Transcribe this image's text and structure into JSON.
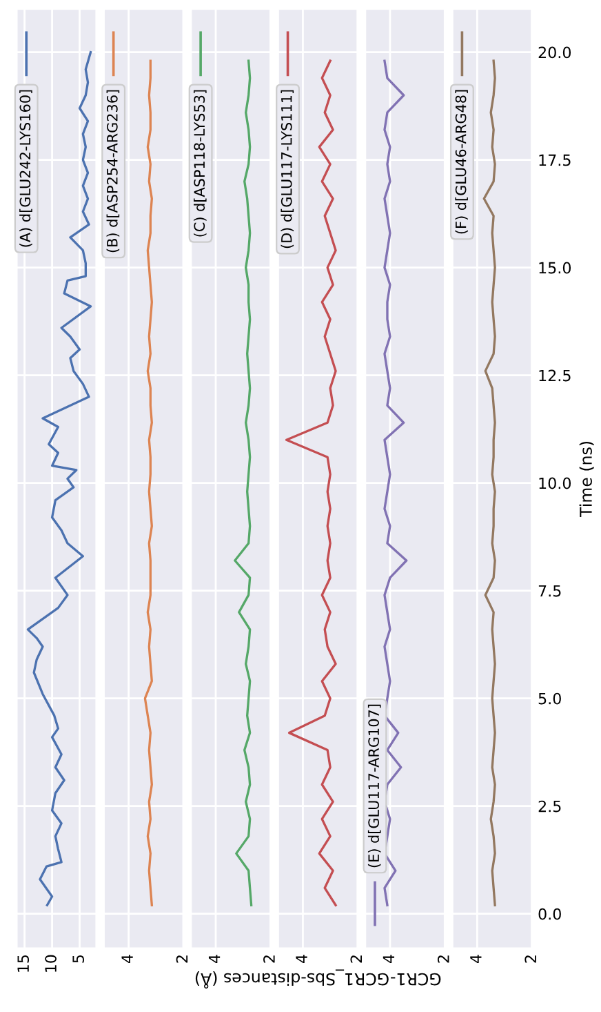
{
  "chart_data": [
    {
      "type": "line",
      "ylim": [
        -0.8,
        21.0
      ],
      "yticks": [
        0,
        2.5,
        5,
        7.5,
        10,
        12.5,
        15,
        17.5,
        20
      ],
      "xlim": [
        16.4,
        2.0
      ],
      "xticks": [
        15,
        10,
        5
      ],
      "grid": true,
      "legend": "top left",
      "tick_labels": "x",
      "series": [
        {
          "name": "(A) d[GLU242-LYS160]",
          "color": "#4c72b0",
          "values": [
            0.2,
            0.4,
            0.8,
            1.1,
            1.2,
            1.5,
            1.8,
            2.1,
            2.4,
            2.8,
            3.1,
            3.4,
            3.7,
            4.1,
            4.3,
            4.6,
            5.1,
            5.6,
            5.9,
            6.2,
            6.4,
            6.6,
            7.1,
            7.4,
            7.8,
            8.3,
            8.6,
            8.9,
            9.2,
            9.6,
            9.9,
            10.1,
            10.3,
            10.4,
            10.7,
            10.9,
            11.3,
            11.5,
            12.0,
            12.3,
            12.6,
            12.9,
            13.1,
            13.4,
            13.6,
            14.1,
            14.4,
            14.7,
            14.8,
            15.1,
            15.4,
            15.7,
            16.0,
            16.3,
            16.6,
            16.9,
            17.2,
            17.5,
            17.8,
            18.1,
            18.4,
            18.7,
            19.0,
            19.3,
            19.6,
            20.0
          ],
          "x": [
            10.9,
            10.0,
            12.2,
            11.0,
            8.3,
            8.9,
            9.4,
            8.3,
            10.0,
            9.4,
            7.8,
            9.4,
            8.3,
            10.0,
            8.9,
            9.6,
            11.7,
            13.3,
            12.8,
            11.7,
            12.8,
            14.4,
            8.9,
            7.2,
            9.4,
            4.4,
            7.2,
            8.3,
            10.0,
            9.4,
            6.1,
            7.2,
            5.6,
            10.0,
            8.9,
            10.6,
            8.9,
            11.7,
            3.3,
            4.4,
            6.1,
            6.7,
            5.0,
            6.7,
            8.3,
            3.0,
            7.8,
            7.2,
            3.9,
            3.9,
            4.4,
            6.7,
            3.3,
            4.4,
            3.5,
            4.4,
            3.5,
            4.4,
            3.9,
            4.4,
            3.5,
            5.0,
            3.9,
            3.5,
            3.9,
            3.0
          ]
        }
      ]
    },
    {
      "type": "line",
      "ylim": [
        -0.8,
        21.0
      ],
      "yticks": [
        0,
        2.5,
        5,
        7.5,
        10,
        12.5,
        15,
        17.5,
        20
      ],
      "xlim": [
        4.9,
        2.0
      ],
      "xticks": [
        4,
        2
      ],
      "grid": true,
      "legend": "top left",
      "tick_labels": "x",
      "series": [
        {
          "name": "(B) d[ASP254-ARG236]",
          "color": "#dd8452",
          "values": [
            0.2,
            0.6,
            1.0,
            1.4,
            1.8,
            2.2,
            2.6,
            3.0,
            3.4,
            3.8,
            4.2,
            4.6,
            5.0,
            5.4,
            5.8,
            6.2,
            6.6,
            7.0,
            7.4,
            7.8,
            8.2,
            8.6,
            9.0,
            9.4,
            9.8,
            10.2,
            10.6,
            11.0,
            11.4,
            11.8,
            12.2,
            12.6,
            13.0,
            13.4,
            13.8,
            14.2,
            14.6,
            15.0,
            15.4,
            15.8,
            16.2,
            16.6,
            17.0,
            17.4,
            17.8,
            18.2,
            18.6,
            19.0,
            19.4,
            19.8
          ],
          "x": [
            3.15,
            3.2,
            3.25,
            3.2,
            3.3,
            3.2,
            3.25,
            3.15,
            3.2,
            3.25,
            3.2,
            3.3,
            3.4,
            3.15,
            3.2,
            3.25,
            3.2,
            3.3,
            3.2,
            3.2,
            3.2,
            3.25,
            3.15,
            3.2,
            3.25,
            3.2,
            3.2,
            3.25,
            3.15,
            3.2,
            3.2,
            3.3,
            3.2,
            3.25,
            3.2,
            3.15,
            3.2,
            3.25,
            3.3,
            3.2,
            3.2,
            3.15,
            3.25,
            3.2,
            3.3,
            3.2,
            3.2,
            3.25,
            3.2,
            3.2
          ]
        }
      ]
    },
    {
      "type": "line",
      "ylim": [
        -0.8,
        21.0
      ],
      "yticks": [
        0,
        2.5,
        5,
        7.5,
        10,
        12.5,
        15,
        17.5,
        20
      ],
      "xlim": [
        4.9,
        2.0
      ],
      "xticks": [
        4,
        2
      ],
      "grid": true,
      "legend": "top left",
      "tick_labels": "x",
      "series": [
        {
          "name": "(C) d[ASP118-LYS53]",
          "color": "#55a868",
          "values": [
            0.2,
            0.6,
            1.0,
            1.4,
            1.8,
            2.2,
            2.6,
            3.0,
            3.4,
            3.8,
            4.2,
            4.6,
            5.0,
            5.4,
            5.8,
            6.2,
            6.6,
            7.0,
            7.4,
            7.8,
            8.2,
            8.6,
            9.0,
            9.4,
            9.8,
            10.2,
            10.6,
            11.0,
            11.4,
            11.8,
            12.2,
            12.6,
            13.0,
            13.4,
            13.8,
            14.2,
            14.6,
            15.0,
            15.4,
            15.8,
            16.2,
            16.6,
            17.0,
            17.4,
            17.8,
            18.2,
            18.6,
            19.0,
            19.4,
            19.8
          ],
          "x": [
            2.7,
            2.75,
            2.8,
            3.25,
            2.8,
            2.75,
            2.9,
            2.75,
            2.8,
            2.95,
            2.75,
            2.85,
            2.8,
            2.75,
            2.9,
            2.8,
            2.75,
            3.15,
            2.8,
            2.75,
            3.3,
            2.8,
            2.75,
            2.8,
            2.85,
            2.8,
            2.75,
            2.8,
            2.9,
            2.8,
            2.75,
            2.8,
            2.85,
            2.8,
            2.75,
            2.8,
            2.8,
            2.9,
            2.8,
            2.75,
            2.8,
            2.85,
            2.95,
            2.8,
            2.75,
            2.8,
            2.9,
            2.8,
            2.75,
            2.8
          ]
        }
      ]
    },
    {
      "type": "line",
      "ylim": [
        -0.8,
        21.0
      ],
      "yticks": [
        0,
        2.5,
        5,
        7.5,
        10,
        12.5,
        15,
        17.5,
        20
      ],
      "xlim": [
        4.9,
        2.0
      ],
      "xticks": [
        4,
        2
      ],
      "grid": true,
      "legend": "top left",
      "tick_labels": "x",
      "xlabel": "GCR1-GCR1_Sbs-distances (Å)",
      "series": [
        {
          "name": "(D) d[GLU117-LYS111]",
          "color": "#c44e52",
          "values": [
            0.2,
            0.6,
            1.0,
            1.4,
            1.8,
            2.2,
            2.6,
            3.0,
            3.4,
            3.8,
            4.2,
            4.6,
            5.0,
            5.4,
            5.8,
            6.2,
            6.6,
            7.0,
            7.4,
            7.8,
            8.2,
            8.6,
            9.0,
            9.4,
            9.8,
            10.2,
            10.6,
            11.0,
            11.4,
            11.8,
            12.2,
            12.6,
            13.0,
            13.4,
            13.8,
            14.2,
            14.6,
            15.0,
            15.4,
            15.8,
            16.2,
            16.6,
            17.0,
            17.4,
            17.8,
            18.2,
            18.6,
            19.0,
            19.4,
            19.8
          ],
          "x": [
            2.8,
            3.2,
            2.9,
            3.4,
            3.0,
            3.3,
            2.9,
            3.3,
            3.0,
            3.1,
            4.5,
            3.2,
            3.0,
            3.3,
            2.8,
            3.1,
            3.2,
            3.0,
            3.3,
            3.0,
            3.1,
            3.0,
            3.1,
            3.0,
            3.1,
            3.0,
            3.1,
            4.6,
            3.1,
            2.9,
            3.0,
            2.8,
            3.0,
            3.2,
            3.0,
            3.3,
            2.9,
            3.1,
            2.8,
            3.0,
            3.2,
            2.9,
            3.3,
            3.0,
            3.4,
            2.9,
            3.2,
            3.0,
            3.3,
            3.0
          ]
        }
      ]
    },
    {
      "type": "line",
      "ylim": [
        -0.8,
        21.0
      ],
      "yticks": [
        0,
        2.5,
        5,
        7.5,
        10,
        12.5,
        15,
        17.5,
        20
      ],
      "xlim": [
        4.9,
        2.0
      ],
      "xticks": [
        4,
        2
      ],
      "grid": true,
      "legend": "bottom left",
      "tick_labels": "x",
      "series": [
        {
          "name": "(E) d[GLU117-ARG107]",
          "color": "#8172b3",
          "values": [
            0.2,
            0.6,
            1.0,
            1.4,
            1.8,
            2.2,
            2.6,
            3.0,
            3.4,
            3.8,
            4.2,
            4.6,
            5.0,
            5.4,
            5.8,
            6.2,
            6.6,
            7.0,
            7.4,
            7.8,
            8.2,
            8.6,
            9.0,
            9.4,
            9.8,
            10.2,
            10.6,
            11.0,
            11.4,
            11.8,
            12.2,
            12.6,
            13.0,
            13.4,
            13.8,
            14.2,
            14.6,
            15.0,
            15.4,
            15.8,
            16.2,
            16.6,
            17.0,
            17.4,
            17.8,
            18.2,
            18.6,
            19.0,
            19.4,
            19.8
          ],
          "x": [
            4.1,
            4.2,
            3.8,
            4.2,
            4.1,
            4.0,
            4.2,
            4.1,
            3.6,
            4.1,
            3.7,
            4.2,
            4.1,
            4.0,
            4.1,
            4.2,
            4.0,
            4.1,
            4.2,
            4.0,
            3.4,
            4.1,
            4.0,
            4.2,
            4.1,
            4.0,
            4.1,
            4.2,
            3.5,
            4.1,
            4.0,
            4.1,
            4.2,
            4.0,
            4.1,
            4.1,
            4.0,
            4.2,
            4.1,
            4.0,
            4.1,
            4.2,
            4.0,
            4.1,
            4.0,
            4.2,
            4.1,
            3.5,
            4.1,
            4.2
          ]
        }
      ]
    },
    {
      "type": "line",
      "ylim": [
        -0.8,
        21.0
      ],
      "yticks": [
        {
          "value": 0,
          "label": "0.0"
        },
        {
          "value": 2.5,
          "label": "2.5"
        },
        {
          "value": 5,
          "label": "5.0"
        },
        {
          "value": 7.5,
          "label": "7.5"
        },
        {
          "value": 10,
          "label": "10.0"
        },
        {
          "value": 12.5,
          "label": "12.5"
        },
        {
          "value": 15,
          "label": "15.0"
        },
        {
          "value": 17.5,
          "label": "17.5"
        },
        {
          "value": 20,
          "label": "20.0"
        }
      ],
      "xlim": [
        4.9,
        2.0
      ],
      "xticks": [
        4,
        2
      ],
      "grid": true,
      "legend": "top left",
      "ylabel": "Time (ns)",
      "series": [
        {
          "name": "(F) d[GLU46-ARG48]",
          "color": "#937860",
          "values": [
            0.2,
            0.6,
            1.0,
            1.4,
            1.8,
            2.2,
            2.6,
            3.0,
            3.4,
            3.8,
            4.2,
            4.6,
            5.0,
            5.4,
            5.8,
            6.2,
            6.6,
            7.0,
            7.4,
            7.8,
            8.2,
            8.6,
            9.0,
            9.4,
            9.8,
            10.2,
            10.6,
            11.0,
            11.4,
            11.8,
            12.2,
            12.6,
            13.0,
            13.4,
            13.8,
            14.2,
            14.6,
            15.0,
            15.4,
            15.8,
            16.2,
            16.6,
            17.0,
            17.4,
            17.8,
            18.2,
            18.6,
            19.0,
            19.4,
            19.8
          ],
          "x": [
            3.35,
            3.4,
            3.45,
            3.35,
            3.4,
            3.5,
            3.4,
            3.35,
            3.45,
            3.4,
            3.35,
            3.4,
            3.45,
            3.4,
            3.35,
            3.4,
            3.45,
            3.4,
            3.7,
            3.4,
            3.35,
            3.45,
            3.4,
            3.4,
            3.35,
            3.45,
            3.4,
            3.4,
            3.35,
            3.4,
            3.45,
            3.7,
            3.4,
            3.35,
            3.4,
            3.45,
            3.4,
            3.35,
            3.4,
            3.45,
            3.4,
            3.75,
            3.4,
            3.35,
            3.45,
            3.4,
            3.5,
            3.4,
            3.35,
            3.4
          ]
        }
      ]
    }
  ]
}
